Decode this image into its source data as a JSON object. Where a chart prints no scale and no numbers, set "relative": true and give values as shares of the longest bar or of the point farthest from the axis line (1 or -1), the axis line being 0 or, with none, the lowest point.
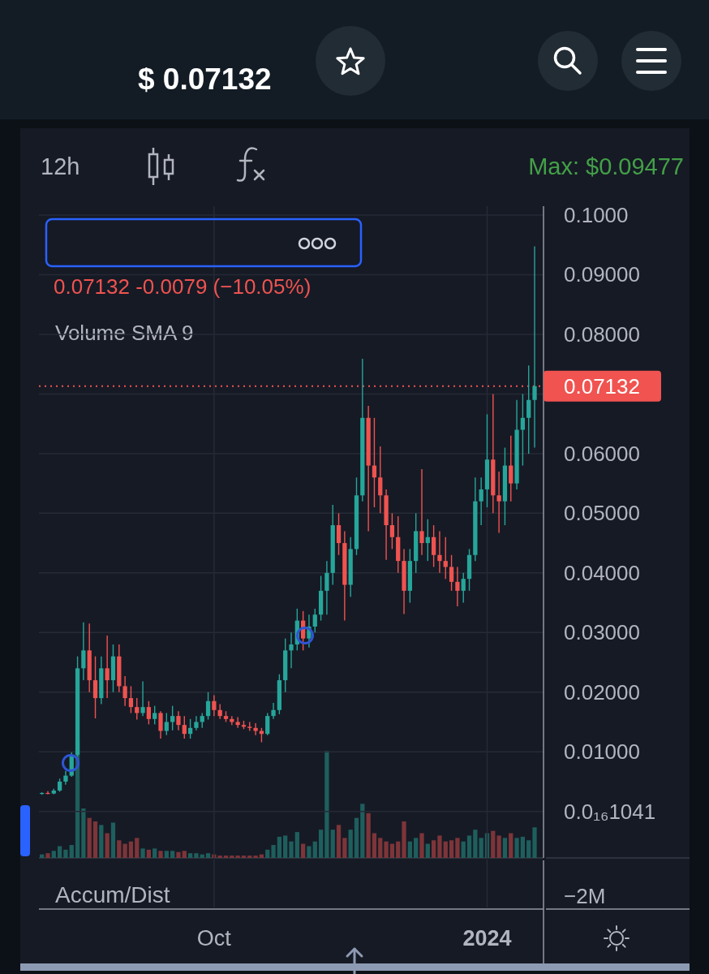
{
  "chart_data": [
    {
      "type": "candlestick",
      "x": [
        "2023-08-04",
        "2023-08-06",
        "2023-08-08",
        "2023-08-10",
        "2023-08-12",
        "2023-08-14",
        "2023-08-16",
        "2023-08-18",
        "2023-08-20",
        "2023-08-22",
        "2023-08-24",
        "2023-08-26",
        "2023-08-28",
        "2023-08-30",
        "2023-09-01",
        "2023-09-03",
        "2023-09-05",
        "2023-09-07",
        "2023-09-09",
        "2023-09-11",
        "2023-09-13",
        "2023-09-15",
        "2023-09-17",
        "2023-09-19",
        "2023-09-21",
        "2023-09-23",
        "2023-09-25",
        "2023-09-27",
        "2023-09-29",
        "2023-10-01",
        "2023-10-03",
        "2023-10-05",
        "2023-10-07",
        "2023-10-09",
        "2023-10-11",
        "2023-10-13",
        "2023-10-15",
        "2023-10-17",
        "2023-10-19",
        "2023-10-21",
        "2023-10-23",
        "2023-10-25",
        "2023-10-27",
        "2023-10-29",
        "2023-10-31",
        "2023-11-02",
        "2023-11-04",
        "2023-11-06",
        "2023-11-08",
        "2023-11-10",
        "2023-11-12",
        "2023-11-14",
        "2023-11-16",
        "2023-11-18",
        "2023-11-20",
        "2023-11-22",
        "2023-11-24",
        "2023-11-26",
        "2023-11-28",
        "2023-11-30",
        "2023-12-02",
        "2023-12-04",
        "2023-12-06",
        "2023-12-08",
        "2023-12-10",
        "2023-12-12",
        "2023-12-14",
        "2023-12-16",
        "2023-12-18",
        "2023-12-20",
        "2023-12-22",
        "2023-12-24",
        "2023-12-26",
        "2023-12-28",
        "2023-12-30",
        "2024-01-01",
        "2024-01-03",
        "2024-01-05",
        "2024-01-07",
        "2024-01-09",
        "2024-01-11",
        "2024-01-13",
        "2024-01-15",
        "2024-01-17"
      ],
      "ohlc": [
        [
          0.003,
          0.0032,
          0.0028,
          0.0031
        ],
        [
          0.0031,
          0.0034,
          0.0029,
          0.003
        ],
        [
          0.003,
          0.0038,
          0.0029,
          0.0035
        ],
        [
          0.0035,
          0.0055,
          0.0033,
          0.005
        ],
        [
          0.005,
          0.0068,
          0.0045,
          0.006
        ],
        [
          0.006,
          0.0099,
          0.0058,
          0.0095
        ],
        [
          0.0095,
          0.026,
          0.0092,
          0.024
        ],
        [
          0.024,
          0.0317,
          0.022,
          0.027
        ],
        [
          0.027,
          0.0315,
          0.02,
          0.022
        ],
        [
          0.022,
          0.026,
          0.0156,
          0.019
        ],
        [
          0.019,
          0.026,
          0.018,
          0.024
        ],
        [
          0.024,
          0.0295,
          0.019,
          0.022
        ],
        [
          0.022,
          0.028,
          0.02,
          0.026
        ],
        [
          0.026,
          0.028,
          0.02,
          0.021
        ],
        [
          0.021,
          0.0227,
          0.0177,
          0.019
        ],
        [
          0.019,
          0.021,
          0.0165,
          0.0175
        ],
        [
          0.0175,
          0.019,
          0.0154,
          0.0165
        ],
        [
          0.0165,
          0.0218,
          0.016,
          0.0175
        ],
        [
          0.0175,
          0.0185,
          0.0146,
          0.0155
        ],
        [
          0.0155,
          0.0177,
          0.0146,
          0.0165
        ],
        [
          0.0165,
          0.0168,
          0.0122,
          0.0135
        ],
        [
          0.0135,
          0.0165,
          0.0128,
          0.015
        ],
        [
          0.015,
          0.0177,
          0.0136,
          0.016
        ],
        [
          0.016,
          0.0168,
          0.0136,
          0.0145
        ],
        [
          0.0145,
          0.016,
          0.0122,
          0.013
        ],
        [
          0.013,
          0.0155,
          0.0122,
          0.014
        ],
        [
          0.014,
          0.016,
          0.0136,
          0.015
        ],
        [
          0.015,
          0.0165,
          0.014,
          0.016
        ],
        [
          0.016,
          0.02,
          0.0154,
          0.0185
        ],
        [
          0.0185,
          0.0195,
          0.016,
          0.017
        ],
        [
          0.017,
          0.018,
          0.0155,
          0.016
        ],
        [
          0.016,
          0.0168,
          0.015,
          0.0155
        ],
        [
          0.0155,
          0.016,
          0.0145,
          0.015
        ],
        [
          0.015,
          0.0158,
          0.014,
          0.0145
        ],
        [
          0.0145,
          0.0152,
          0.0138,
          0.0142
        ],
        [
          0.0142,
          0.015,
          0.0135,
          0.014
        ],
        [
          0.014,
          0.0148,
          0.0128,
          0.0135
        ],
        [
          0.0135,
          0.014,
          0.0116,
          0.013
        ],
        [
          0.013,
          0.0165,
          0.0128,
          0.016
        ],
        [
          0.016,
          0.0182,
          0.0155,
          0.017
        ],
        [
          0.017,
          0.023,
          0.0163,
          0.022
        ],
        [
          0.022,
          0.029,
          0.02,
          0.027
        ],
        [
          0.027,
          0.03,
          0.024,
          0.028
        ],
        [
          0.028,
          0.034,
          0.027,
          0.032
        ],
        [
          0.032,
          0.0336,
          0.027,
          0.029
        ],
        [
          0.029,
          0.033,
          0.0275,
          0.031
        ],
        [
          0.031,
          0.034,
          0.03,
          0.033
        ],
        [
          0.033,
          0.0395,
          0.032,
          0.037
        ],
        [
          0.037,
          0.042,
          0.033,
          0.04
        ],
        [
          0.04,
          0.0514,
          0.038,
          0.048
        ],
        [
          0.048,
          0.05,
          0.043,
          0.045
        ],
        [
          0.045,
          0.047,
          0.032,
          0.038
        ],
        [
          0.038,
          0.046,
          0.036,
          0.044
        ],
        [
          0.044,
          0.056,
          0.043,
          0.053
        ],
        [
          0.053,
          0.0759,
          0.052,
          0.066
        ],
        [
          0.066,
          0.068,
          0.047,
          0.058
        ],
        [
          0.058,
          0.066,
          0.051,
          0.056
        ],
        [
          0.056,
          0.0612,
          0.05,
          0.053
        ],
        [
          0.053,
          0.054,
          0.0422,
          0.048
        ],
        [
          0.048,
          0.05,
          0.044,
          0.046
        ],
        [
          0.046,
          0.0495,
          0.04,
          0.042
        ],
        [
          0.042,
          0.044,
          0.0331,
          0.037
        ],
        [
          0.037,
          0.044,
          0.035,
          0.042
        ],
        [
          0.042,
          0.05,
          0.04,
          0.047
        ],
        [
          0.047,
          0.0574,
          0.043,
          0.045
        ],
        [
          0.045,
          0.049,
          0.042,
          0.046
        ],
        [
          0.046,
          0.048,
          0.041,
          0.043
        ],
        [
          0.043,
          0.047,
          0.04,
          0.042
        ],
        [
          0.042,
          0.046,
          0.039,
          0.041
        ],
        [
          0.041,
          0.043,
          0.037,
          0.0385
        ],
        [
          0.0385,
          0.041,
          0.0344,
          0.037
        ],
        [
          0.037,
          0.04,
          0.035,
          0.039
        ],
        [
          0.039,
          0.044,
          0.037,
          0.043
        ],
        [
          0.043,
          0.056,
          0.042,
          0.052
        ],
        [
          0.052,
          0.056,
          0.048,
          0.054
        ],
        [
          0.054,
          0.0666,
          0.051,
          0.059
        ],
        [
          0.059,
          0.07,
          0.05,
          0.053
        ],
        [
          0.053,
          0.057,
          0.0467,
          0.052
        ],
        [
          0.052,
          0.061,
          0.048,
          0.058
        ],
        [
          0.058,
          0.063,
          0.052,
          0.055
        ],
        [
          0.055,
          0.069,
          0.054,
          0.064
        ],
        [
          0.064,
          0.07,
          0.058,
          0.066
        ],
        [
          0.066,
          0.0748,
          0.06,
          0.069
        ],
        [
          0.069,
          0.09477,
          0.061,
          0.07132
        ]
      ],
      "colors": [
        "#26a69a",
        "#ef5350",
        "#26a69a",
        "#26a69a",
        "#26a69a",
        "#26a69a",
        "#26a69a",
        "#26a69a",
        "#ef5350",
        "#ef5350",
        "#26a69a",
        "#ef5350",
        "#26a69a",
        "#ef5350",
        "#ef5350",
        "#ef5350",
        "#ef5350",
        "#26a69a",
        "#ef5350",
        "#26a69a",
        "#ef5350",
        "#26a69a",
        "#26a69a",
        "#ef5350",
        "#ef5350",
        "#26a69a",
        "#26a69a",
        "#26a69a",
        "#26a69a",
        "#ef5350",
        "#ef5350",
        "#ef5350",
        "#ef5350",
        "#ef5350",
        "#ef5350",
        "#ef5350",
        "#ef5350",
        "#ef5350",
        "#26a69a",
        "#26a69a",
        "#26a69a",
        "#26a69a",
        "#26a69a",
        "#26a69a",
        "#ef5350",
        "#26a69a",
        "#26a69a",
        "#26a69a",
        "#26a69a",
        "#26a69a",
        "#ef5350",
        "#ef5350",
        "#26a69a",
        "#26a69a",
        "#26a69a",
        "#ef5350",
        "#ef5350",
        "#ef5350",
        "#ef5350",
        "#ef5350",
        "#ef5350",
        "#ef5350",
        "#26a69a",
        "#26a69a",
        "#ef5350",
        "#26a69a",
        "#ef5350",
        "#ef5350",
        "#ef5350",
        "#ef5350",
        "#ef5350",
        "#26a69a",
        "#26a69a",
        "#26a69a",
        "#26a69a",
        "#26a69a",
        "#ef5350",
        "#ef5350",
        "#26a69a",
        "#ef5350",
        "#26a69a",
        "#26a69a",
        "#26a69a",
        "#26a69a"
      ],
      "xlim": [
        "2023-08-03",
        "2024-01-20"
      ],
      "xticks": [
        {
          "value": "2023-10-01",
          "label": "Oct"
        },
        {
          "value": "2024-01-01",
          "label": "2024"
        }
      ],
      "ylim": [
        -0.0078,
        0.1015
      ],
      "yticks": [
        {
          "value": 0,
          "label": "0.0₁₆1041"
        },
        {
          "value": 0.01,
          "label": "0.01000"
        },
        {
          "value": 0.02,
          "label": "0.02000"
        },
        {
          "value": 0.03,
          "label": "0.03000"
        },
        {
          "value": 0.04,
          "label": "0.04000"
        },
        {
          "value": 0.05,
          "label": "0.05000"
        },
        {
          "value": 0.06,
          "label": "0.06000"
        },
        {
          "value": 0.07,
          "label": null
        },
        {
          "value": 0.08,
          "label": "0.08000"
        },
        {
          "value": 0.09,
          "label": "0.09000"
        },
        {
          "value": 0.1,
          "label": "0.1000"
        }
      ],
      "grid": true,
      "ref_lines": [
        {
          "axis": "y",
          "value": 0.07132,
          "label": "0.07132",
          "color": "#f05350",
          "line_style": "dotted"
        }
      ],
      "annotations": [
        "$ 0.07132",
        "12h",
        "Max: $0.09477",
        "0.07132 -0.0079 (−10.05%)"
      ]
    },
    {
      "type": "bar",
      "title": "Volume SMA 9",
      "x": [
        "2023-08-04",
        "2023-08-06",
        "2023-08-08",
        "2023-08-10",
        "2023-08-12",
        "2023-08-14",
        "2023-08-16",
        "2023-08-18",
        "2023-08-20",
        "2023-08-22",
        "2023-08-24",
        "2023-08-26",
        "2023-08-28",
        "2023-08-30",
        "2023-09-01",
        "2023-09-03",
        "2023-09-05",
        "2023-09-07",
        "2023-09-09",
        "2023-09-11",
        "2023-09-13",
        "2023-09-15",
        "2023-09-17",
        "2023-09-19",
        "2023-09-21",
        "2023-09-23",
        "2023-09-25",
        "2023-09-27",
        "2023-09-29",
        "2023-10-01",
        "2023-10-03",
        "2023-10-05",
        "2023-10-07",
        "2023-10-09",
        "2023-10-11",
        "2023-10-13",
        "2023-10-15",
        "2023-10-17",
        "2023-10-19",
        "2023-10-21",
        "2023-10-23",
        "2023-10-25",
        "2023-10-27",
        "2023-10-29",
        "2023-10-31",
        "2023-11-02",
        "2023-11-04",
        "2023-11-06",
        "2023-11-08",
        "2023-11-10",
        "2023-11-12",
        "2023-11-14",
        "2023-11-16",
        "2023-11-18",
        "2023-11-20",
        "2023-11-22",
        "2023-11-24",
        "2023-11-26",
        "2023-11-28",
        "2023-11-30",
        "2023-12-02",
        "2023-12-04",
        "2023-12-06",
        "2023-12-08",
        "2023-12-10",
        "2023-12-12",
        "2023-12-14",
        "2023-12-16",
        "2023-12-18",
        "2023-12-20",
        "2023-12-22",
        "2023-12-24",
        "2023-12-26",
        "2023-12-28",
        "2023-12-30",
        "2024-01-01",
        "2024-01-03",
        "2024-01-05",
        "2024-01-07",
        "2024-01-09",
        "2024-01-11",
        "2024-01-13",
        "2024-01-15",
        "2024-01-17"
      ],
      "values": [
        0.03,
        0.04,
        0.06,
        0.1,
        0.07,
        0.11,
        1,
        0.42,
        0.34,
        0.31,
        0.28,
        0.21,
        0.3,
        0.15,
        0.12,
        0.14,
        0.17,
        0.08,
        0.07,
        0.08,
        0.06,
        0.06,
        0.06,
        0.05,
        0.06,
        0.04,
        0.04,
        0.03,
        0.04,
        0.03,
        0.02,
        0.02,
        0.02,
        0.02,
        0.02,
        0.02,
        0.02,
        0.03,
        0.07,
        0.11,
        0.18,
        0.19,
        0.14,
        0.22,
        0.12,
        0.1,
        0.14,
        0.24,
        0.91,
        0.24,
        0.28,
        0.17,
        0.24,
        0.34,
        0.46,
        0.38,
        0.21,
        0.17,
        0.14,
        0.12,
        0.14,
        0.31,
        0.14,
        0.17,
        0.21,
        0.12,
        0.15,
        0.19,
        0.14,
        0.15,
        0.17,
        0.14,
        0.19,
        0.24,
        0.17,
        0.21,
        0.23,
        0.19,
        0.17,
        0.21,
        0.17,
        0.18,
        0.15,
        0.26
      ],
      "colors": [
        "#1e5f5d",
        "#7d3539",
        "#1e5f5d",
        "#1e5f5d",
        "#1e5f5d",
        "#1e5f5d",
        "#1e5f5d",
        "#1e5f5d",
        "#7d3539",
        "#7d3539",
        "#1e5f5d",
        "#7d3539",
        "#1e5f5d",
        "#7d3539",
        "#7d3539",
        "#7d3539",
        "#7d3539",
        "#1e5f5d",
        "#7d3539",
        "#1e5f5d",
        "#7d3539",
        "#1e5f5d",
        "#1e5f5d",
        "#7d3539",
        "#7d3539",
        "#1e5f5d",
        "#1e5f5d",
        "#1e5f5d",
        "#1e5f5d",
        "#7d3539",
        "#7d3539",
        "#7d3539",
        "#7d3539",
        "#7d3539",
        "#7d3539",
        "#7d3539",
        "#7d3539",
        "#7d3539",
        "#1e5f5d",
        "#1e5f5d",
        "#1e5f5d",
        "#1e5f5d",
        "#1e5f5d",
        "#1e5f5d",
        "#7d3539",
        "#1e5f5d",
        "#1e5f5d",
        "#1e5f5d",
        "#1e5f5d",
        "#1e5f5d",
        "#7d3539",
        "#7d3539",
        "#1e5f5d",
        "#1e5f5d",
        "#1e5f5d",
        "#7d3539",
        "#7d3539",
        "#7d3539",
        "#7d3539",
        "#7d3539",
        "#7d3539",
        "#7d3539",
        "#1e5f5d",
        "#1e5f5d",
        "#7d3539",
        "#1e5f5d",
        "#7d3539",
        "#7d3539",
        "#7d3539",
        "#7d3539",
        "#7d3539",
        "#1e5f5d",
        "#1e5f5d",
        "#1e5f5d",
        "#1e5f5d",
        "#1e5f5d",
        "#7d3539",
        "#7d3539",
        "#1e5f5d",
        "#7d3539",
        "#1e5f5d",
        "#1e5f5d",
        "#1e5f5d",
        "#1e5f5d"
      ],
      "relative": true,
      "xlim": [
        "2023-08-03",
        "2024-01-20"
      ],
      "tick_labels": false
    },
    {
      "type": "other",
      "title": "Accum/Dist",
      "annotations": [
        "−2M"
      ]
    }
  ]
}
